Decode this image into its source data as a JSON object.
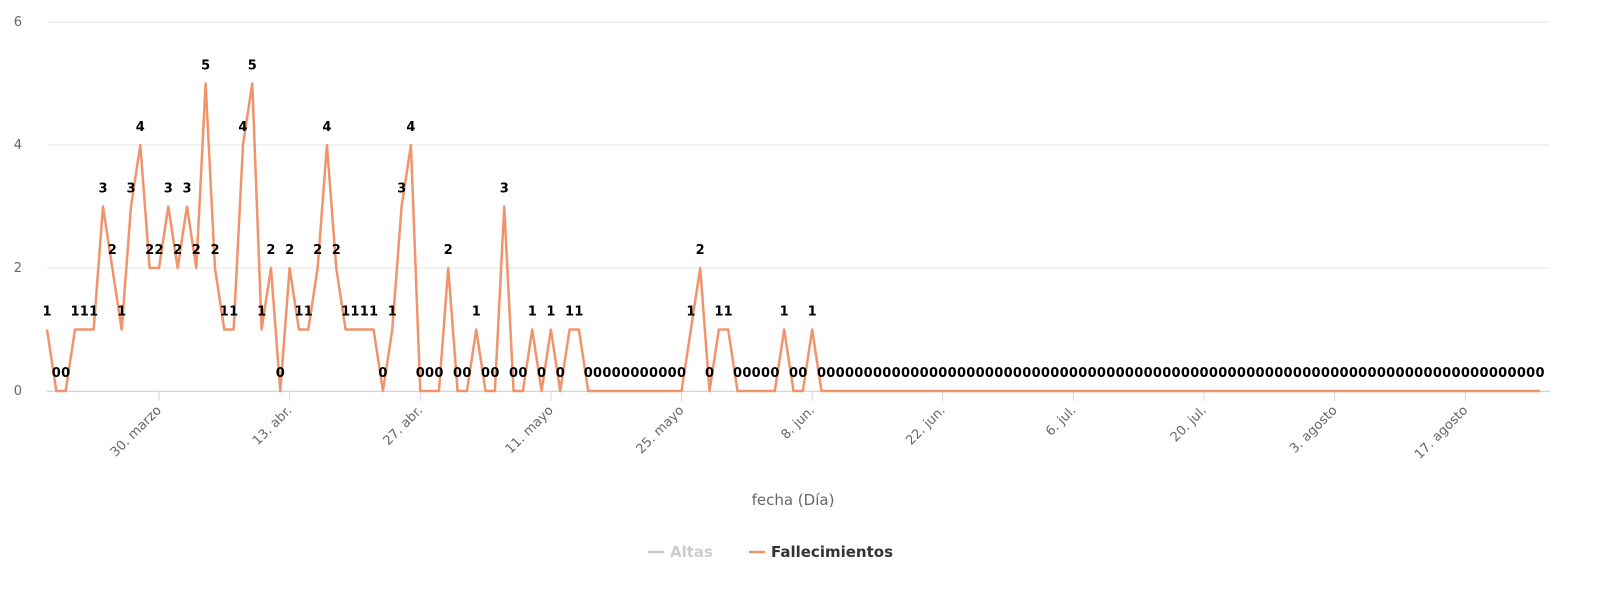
{
  "chart_data": {
    "type": "line",
    "x_label": "fecha (Día)",
    "categories": [
      null,
      null,
      null,
      null,
      null,
      null,
      null,
      null,
      null,
      null,
      null,
      null,
      "30. marzo",
      null,
      null,
      null,
      null,
      null,
      null,
      null,
      null,
      null,
      null,
      null,
      null,
      null,
      "13. abr.",
      null,
      null,
      null,
      null,
      null,
      null,
      null,
      null,
      null,
      null,
      null,
      null,
      null,
      "27. abr.",
      null,
      null,
      null,
      null,
      null,
      null,
      null,
      null,
      null,
      null,
      null,
      null,
      null,
      "11. mayo",
      null,
      null,
      null,
      null,
      null,
      null,
      null,
      null,
      null,
      null,
      null,
      null,
      null,
      "25. mayo",
      null,
      null,
      null,
      null,
      null,
      null,
      null,
      null,
      null,
      null,
      null,
      null,
      null,
      "8. jun.",
      null,
      null,
      null,
      null,
      null,
      null,
      null,
      null,
      null,
      null,
      null,
      null,
      null,
      "22. jun.",
      null,
      null,
      null,
      null,
      null,
      null,
      null,
      null,
      null,
      null,
      null,
      null,
      null,
      "6. jul.",
      null,
      null,
      null,
      null,
      null,
      null,
      null,
      null,
      null,
      null,
      null,
      null,
      null,
      "20. jul.",
      null,
      null,
      null,
      null,
      null,
      null,
      null,
      null,
      null,
      null,
      null,
      null,
      null,
      "3. agosto",
      null,
      null,
      null,
      null,
      null,
      null,
      null,
      null,
      null,
      null,
      null,
      null,
      null,
      "17. agosto",
      null,
      null,
      null,
      null,
      null,
      null,
      null,
      null
    ],
    "series": [
      {
        "name": "Altas",
        "color": "#cccccc",
        "visible": false
      },
      {
        "name": "Fallecimientos",
        "color": "#f0946c",
        "visible": true,
        "values": [
          1,
          0,
          0,
          1,
          1,
          1,
          3,
          2,
          1,
          3,
          4,
          2,
          2,
          3,
          2,
          3,
          2,
          5,
          2,
          1,
          1,
          4,
          5,
          1,
          2,
          0,
          2,
          1,
          1,
          2,
          4,
          2,
          1,
          1,
          1,
          1,
          0,
          1,
          3,
          4,
          0,
          0,
          0,
          2,
          0,
          0,
          1,
          0,
          0,
          3,
          0,
          0,
          1,
          0,
          1,
          0,
          1,
          1,
          0,
          0,
          0,
          0,
          0,
          0,
          0,
          0,
          0,
          0,
          0,
          1,
          2,
          0,
          1,
          1,
          0,
          0,
          0,
          0,
          0,
          1,
          0,
          0,
          1,
          0,
          0,
          0,
          0,
          0,
          0,
          0,
          0,
          0,
          0,
          0,
          0,
          0,
          0,
          0,
          0,
          0,
          0,
          0,
          0,
          0,
          0,
          0,
          0,
          0,
          0,
          0,
          0,
          0,
          0,
          0,
          0,
          0,
          0,
          0,
          0,
          0,
          0,
          0,
          0,
          0,
          0,
          0,
          0,
          0,
          0,
          0,
          0,
          0,
          0,
          0,
          0,
          0,
          0,
          0,
          0,
          0,
          0,
          0,
          0,
          0,
          0,
          0,
          0,
          0,
          0,
          0,
          0,
          0,
          0,
          0,
          0,
          0,
          0,
          0,
          0,
          0,
          0
        ]
      }
    ],
    "ylim": [
      0,
      6
    ],
    "yticks": [
      0,
      2,
      4,
      6
    ],
    "grid": true,
    "data_labels": true,
    "legend": "bottom"
  }
}
